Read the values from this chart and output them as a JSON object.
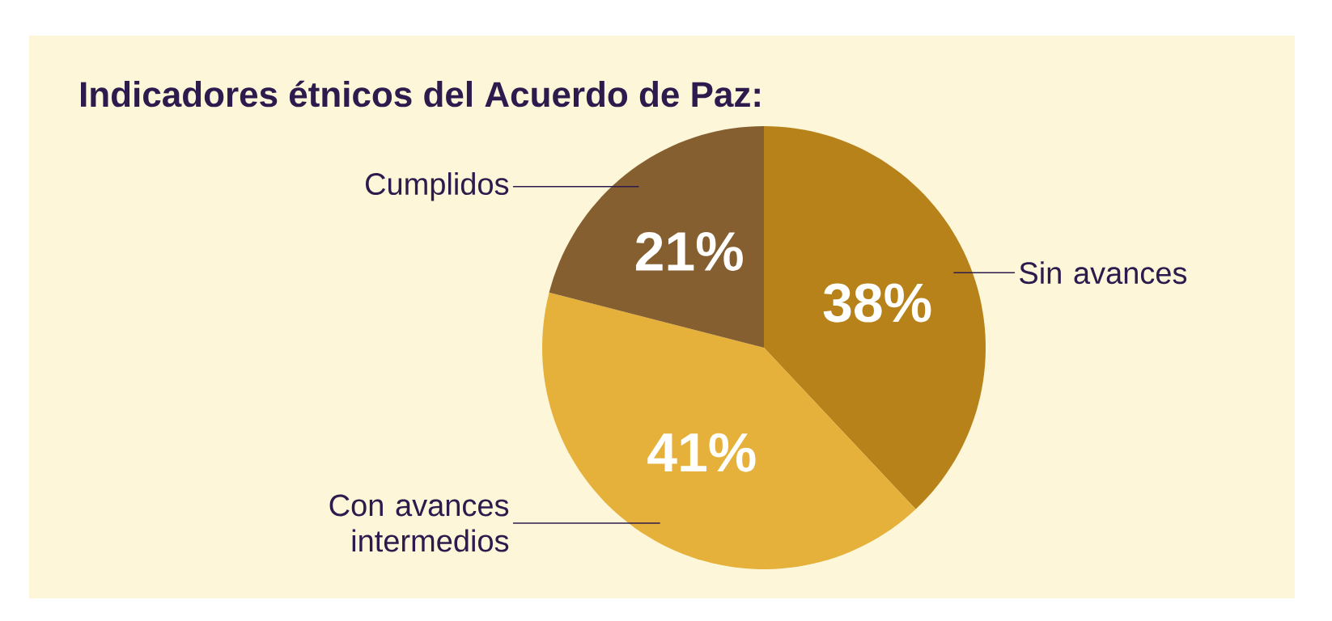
{
  "chart_data": {
    "type": "pie",
    "title": "Indicadores étnicos del Acuerdo de Paz:",
    "categories": [
      "Sin avances",
      "Con avances intermedios",
      "Cumplidos"
    ],
    "values": [
      38,
      41,
      21
    ],
    "value_labels": [
      "38%",
      "41%",
      "21%"
    ],
    "colors": [
      "#b8821a",
      "#e5b13a",
      "#855f30"
    ]
  }
}
